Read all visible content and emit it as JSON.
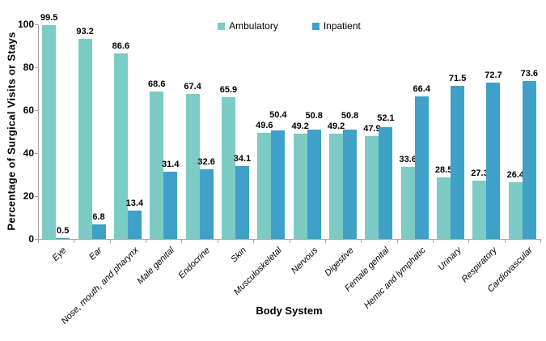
{
  "chart_data": {
    "type": "bar",
    "title": "",
    "xlabel": "Body System",
    "ylabel": "Percentage of Surgical Visits or Stays",
    "ylim": [
      0,
      100
    ],
    "yticks": [
      0,
      20,
      40,
      60,
      80,
      100
    ],
    "legend_position": "top-center",
    "data_labels": true,
    "grid": false,
    "axis_color": "#a6a6a6",
    "text_color": "#000000",
    "categories": [
      "Eye",
      "Ear",
      "Nose, mouth, and pharynx",
      "Male genital",
      "Endocrine",
      "Skin",
      "Musculoskeletal",
      "Nervous",
      "Digestive",
      "Female genital",
      "Hemic and lymphatic",
      "Urinary",
      "Respiratory",
      "Cardiovascular"
    ],
    "series": [
      {
        "name": "Ambulatory",
        "color": "#7ccbc4",
        "values": [
          99.5,
          93.2,
          86.6,
          68.6,
          67.4,
          65.9,
          49.6,
          49.2,
          49.2,
          47.9,
          33.6,
          28.5,
          27.3,
          26.4
        ]
      },
      {
        "name": "Inpatient",
        "color": "#3fa0c8",
        "values": [
          0.5,
          6.8,
          13.4,
          31.4,
          32.6,
          34.1,
          50.4,
          50.8,
          50.8,
          52.1,
          66.4,
          71.5,
          72.7,
          73.6
        ]
      }
    ]
  }
}
